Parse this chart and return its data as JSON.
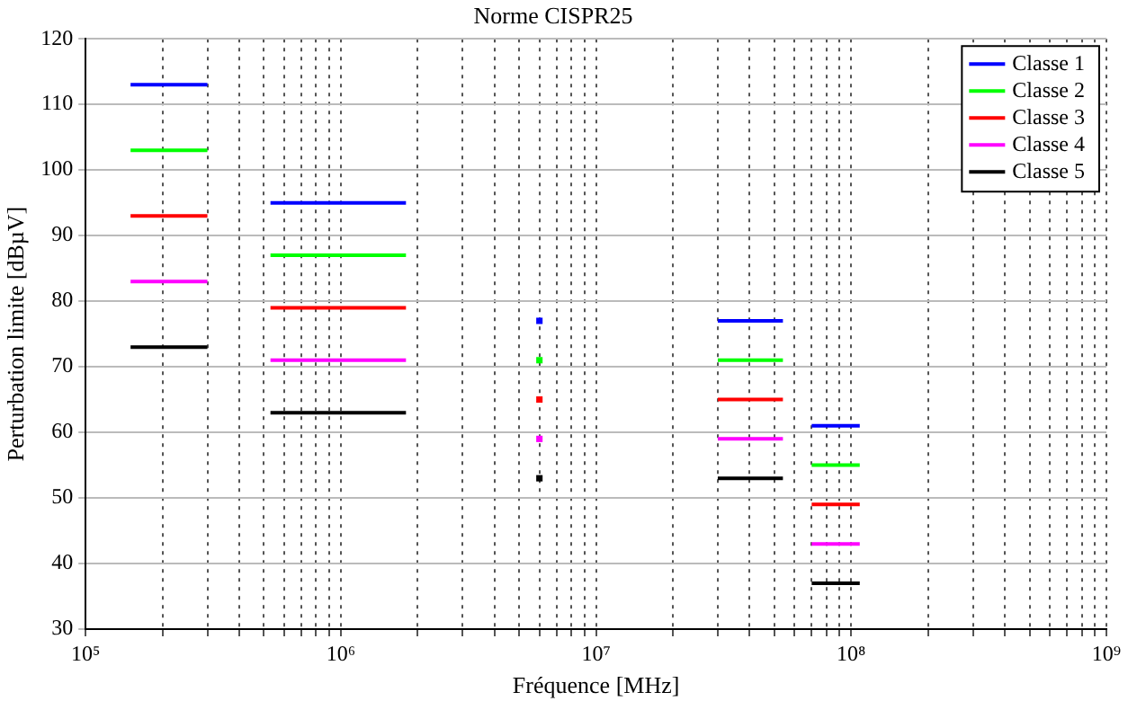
{
  "chart_data": {
    "type": "line",
    "title": "Norme CISPR25",
    "xlabel": "Fréquence [MHz]",
    "ylabel": "Perturbation limite [dBµV]",
    "x": [
      150000,
      300000,
      400000,
      530000,
      1800000,
      3000000,
      6000000,
      10000000,
      30000000,
      54000000,
      65000000,
      70000000,
      108000000
    ],
    "series": [
      {
        "name": "Classe 1",
        "color": "#0000ff",
        "values": [
          113,
          113,
          null,
          95,
          95,
          null,
          77,
          null,
          77,
          77,
          null,
          61,
          61
        ]
      },
      {
        "name": "Classe 2",
        "color": "#00ff00",
        "values": [
          103,
          103,
          null,
          87,
          87,
          null,
          71,
          null,
          71,
          71,
          null,
          55,
          55
        ]
      },
      {
        "name": "Classe 3",
        "color": "#ff0000",
        "values": [
          93,
          93,
          null,
          79,
          79,
          null,
          65,
          null,
          65,
          65,
          null,
          49,
          49
        ]
      },
      {
        "name": "Classe 4",
        "color": "#ff00ff",
        "values": [
          83,
          83,
          null,
          71,
          71,
          null,
          59,
          null,
          59,
          59,
          null,
          43,
          43
        ]
      },
      {
        "name": "Classe 5",
        "color": "#000000",
        "values": [
          73,
          73,
          null,
          63,
          63,
          null,
          53,
          null,
          53,
          53,
          null,
          37,
          37
        ]
      }
    ],
    "log": "x",
    "xlim": [
      100000,
      1000000000
    ],
    "xticks": [
      {
        "value": 100000,
        "label": "10⁵"
      },
      {
        "value": 200000,
        "label": null
      },
      {
        "value": 300000,
        "label": null
      },
      {
        "value": 400000,
        "label": null
      },
      {
        "value": 500000,
        "label": null
      },
      {
        "value": 600000,
        "label": null
      },
      {
        "value": 700000,
        "label": null
      },
      {
        "value": 800000,
        "label": null
      },
      {
        "value": 900000,
        "label": null
      },
      {
        "value": 1000000,
        "label": "10⁶"
      },
      {
        "value": 2000000,
        "label": null
      },
      {
        "value": 3000000,
        "label": null
      },
      {
        "value": 4000000,
        "label": null
      },
      {
        "value": 5000000,
        "label": null
      },
      {
        "value": 6000000,
        "label": null
      },
      {
        "value": 7000000,
        "label": null
      },
      {
        "value": 8000000,
        "label": null
      },
      {
        "value": 9000000,
        "label": null
      },
      {
        "value": 10000000,
        "label": "10⁷"
      },
      {
        "value": 20000000,
        "label": null
      },
      {
        "value": 30000000,
        "label": null
      },
      {
        "value": 40000000,
        "label": null
      },
      {
        "value": 50000000,
        "label": null
      },
      {
        "value": 60000000,
        "label": null
      },
      {
        "value": 70000000,
        "label": null
      },
      {
        "value": 80000000,
        "label": null
      },
      {
        "value": 90000000,
        "label": null
      },
      {
        "value": 100000000,
        "label": "10⁸"
      },
      {
        "value": 200000000,
        "label": null
      },
      {
        "value": 300000000,
        "label": null
      },
      {
        "value": 400000000,
        "label": null
      },
      {
        "value": 500000000,
        "label": null
      },
      {
        "value": 600000000,
        "label": null
      },
      {
        "value": 700000000,
        "label": null
      },
      {
        "value": 800000000,
        "label": null
      },
      {
        "value": 900000000,
        "label": null
      },
      {
        "value": 1000000000,
        "label": "10⁹"
      }
    ],
    "ylim": [
      30,
      120
    ],
    "yticks": [
      30,
      40,
      50,
      60,
      70,
      80,
      90,
      100,
      110,
      120
    ],
    "grid": true,
    "legend": "top right",
    "marker": "none",
    "line_style": "solid"
  }
}
